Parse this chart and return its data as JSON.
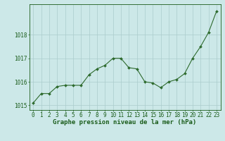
{
  "x": [
    0,
    1,
    2,
    3,
    4,
    5,
    6,
    7,
    8,
    9,
    10,
    11,
    12,
    13,
    14,
    15,
    16,
    17,
    18,
    19,
    20,
    21,
    22,
    23
  ],
  "y": [
    1015.1,
    1015.5,
    1015.5,
    1015.8,
    1015.85,
    1015.85,
    1015.85,
    1016.3,
    1016.55,
    1016.7,
    1017.0,
    1017.0,
    1016.6,
    1016.55,
    1016.0,
    1015.95,
    1015.75,
    1016.0,
    1016.1,
    1016.35,
    1017.0,
    1017.5,
    1018.1,
    1019.0
  ],
  "ylim": [
    1014.8,
    1019.3
  ],
  "yticks": [
    1015,
    1016,
    1017,
    1018
  ],
  "xticks": [
    0,
    1,
    2,
    3,
    4,
    5,
    6,
    7,
    8,
    9,
    10,
    11,
    12,
    13,
    14,
    15,
    16,
    17,
    18,
    19,
    20,
    21,
    22,
    23
  ],
  "line_color": "#2d6a2d",
  "marker_color": "#2d6a2d",
  "bg_color": "#cce8e8",
  "grid_color": "#aacccc",
  "title": "Graphe pression niveau de la mer (hPa)",
  "title_color": "#1a5c1a",
  "title_fontsize": 6.5,
  "tick_color": "#1a5c1a",
  "tick_fontsize": 5.5
}
